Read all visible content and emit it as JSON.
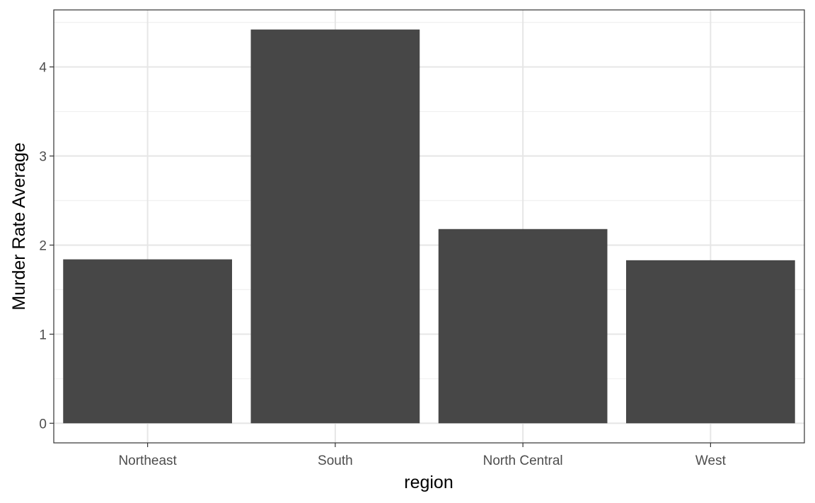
{
  "chart_data": {
    "type": "bar",
    "title": "",
    "xlabel": "region",
    "ylabel": "Murder Rate Average",
    "categories": [
      "Northeast",
      "South",
      "North Central",
      "West"
    ],
    "values": [
      1.84,
      4.42,
      2.18,
      1.83
    ],
    "ylim": [
      -0.22,
      4.64
    ],
    "yticks": [
      0,
      1,
      2,
      3,
      4
    ],
    "grid": true,
    "legend": "none",
    "colors": {
      "bar": "#474747",
      "grid_major": "#e6e6e6",
      "grid_minor": "#f0f0f0",
      "panel_border": "#333333",
      "tick": "#333333",
      "background": "#ffffff"
    }
  }
}
